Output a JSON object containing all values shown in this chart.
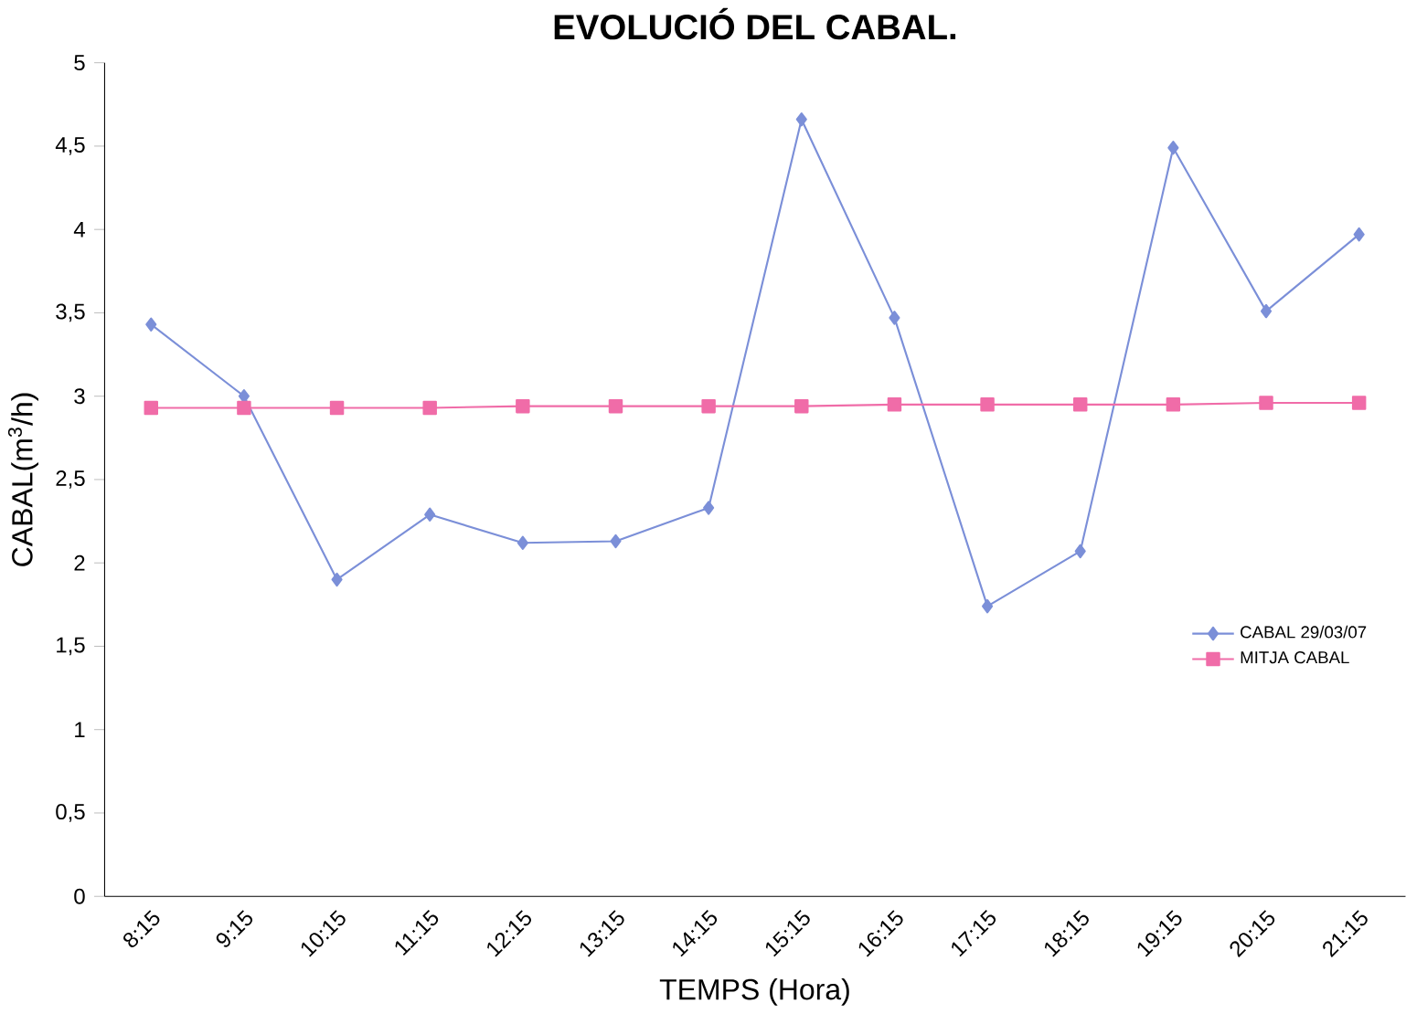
{
  "chart_data": {
    "type": "line",
    "title": "EVOLUCIÓ DEL CABAL.",
    "xlabel": "TEMPS (Hora)",
    "ylabel": "CABAL(m$^{3}$/h)",
    "categories": [
      "8:15",
      "9:15",
      "10:15",
      "11:15",
      "12:15",
      "13:15",
      "14:15",
      "15:15",
      "16:15",
      "17:15",
      "18:15",
      "19:15",
      "20:15",
      "21:15"
    ],
    "series": [
      {
        "name": "CABAL 29/03/07",
        "color": "#7b8fd8",
        "marker": "diamond",
        "values": [
          3.43,
          3.0,
          1.9,
          2.29,
          2.12,
          2.13,
          2.33,
          4.66,
          3.47,
          1.74,
          2.07,
          4.49,
          3.51,
          3.97
        ]
      },
      {
        "name": "MITJA CABAL",
        "color": "#f06ca8",
        "marker": "square",
        "values": [
          2.93,
          2.93,
          2.93,
          2.93,
          2.94,
          2.94,
          2.94,
          2.94,
          2.95,
          2.95,
          2.95,
          2.95,
          2.96,
          2.96
        ]
      }
    ],
    "ylim": [
      0,
      5
    ],
    "yticks": [
      0,
      {
        "value": 0.5,
        "label": "0,5"
      },
      1,
      {
        "value": 1.5,
        "label": "1,5"
      },
      2,
      {
        "value": 2.5,
        "label": "2,5"
      },
      3,
      {
        "value": 3.5,
        "label": "3,5"
      },
      4,
      {
        "value": 4.5,
        "label": "4,5"
      },
      5
    ],
    "grid": false,
    "legend": "right",
    "line_style": "solid"
  }
}
